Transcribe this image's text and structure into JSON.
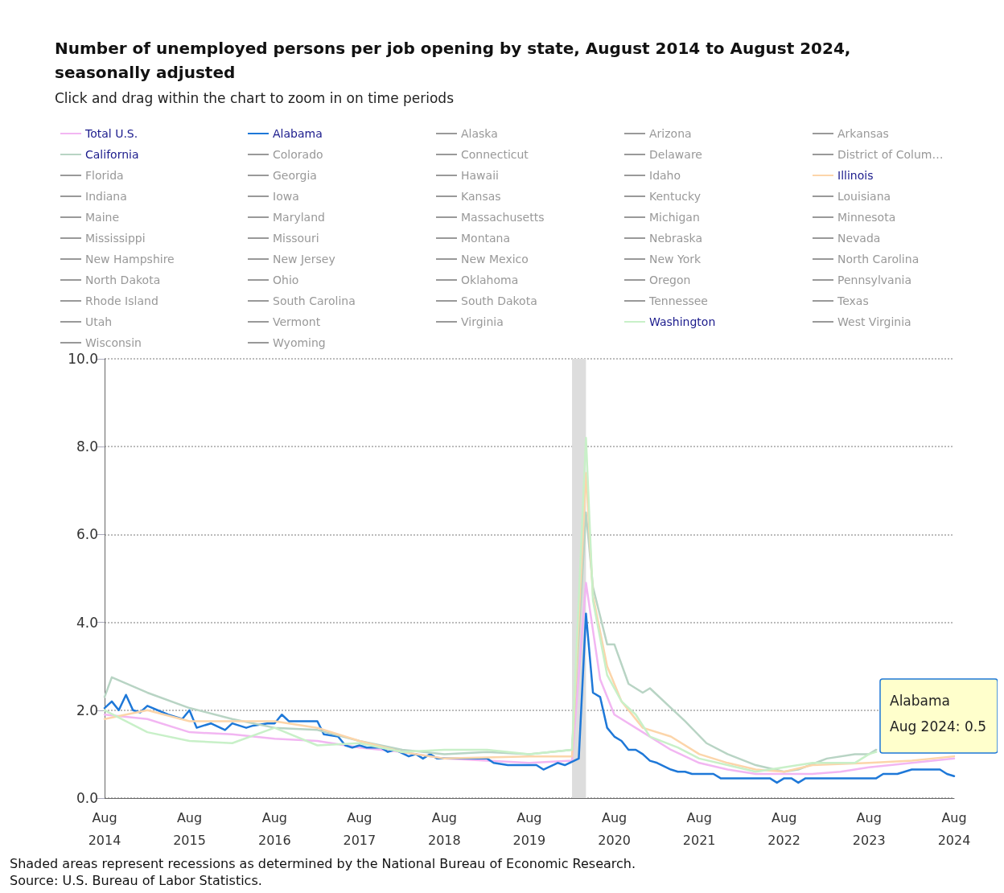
{
  "chart_data": {
    "type": "line",
    "title": "Number of unemployed persons per job opening by state, August 2014 to August 2024, seasonally adjusted",
    "subtitle": "Click and drag within the chart to zoom in on time periods",
    "legend": "top",
    "grid": "y",
    "marker": "none",
    "line_style": "solid",
    "xlim": [
      "2014-08",
      "2024-08"
    ],
    "xticks": [
      {
        "value": "2014-08",
        "label": "Aug\n2014"
      },
      {
        "value": "2015-08",
        "label": "Aug\n2015"
      },
      {
        "value": "2016-08",
        "label": "Aug\n2016"
      },
      {
        "value": "2017-08",
        "label": "Aug\n2017"
      },
      {
        "value": "2018-08",
        "label": "Aug\n2018"
      },
      {
        "value": "2019-08",
        "label": "Aug\n2019"
      },
      {
        "value": "2020-08",
        "label": "Aug\n2020"
      },
      {
        "value": "2021-08",
        "label": "Aug\n2021"
      },
      {
        "value": "2022-08",
        "label": "Aug\n2022"
      },
      {
        "value": "2023-08",
        "label": "Aug\n2023"
      },
      {
        "value": "2024-08",
        "label": "Aug\n2024"
      }
    ],
    "ylim": [
      0,
      10
    ],
    "yticks": [
      {
        "value": 0,
        "label": "0.0"
      },
      {
        "value": 2,
        "label": "2.0"
      },
      {
        "value": 4,
        "label": "4.0"
      },
      {
        "value": 6,
        "label": "6.0"
      },
      {
        "value": 8,
        "label": "8.0"
      },
      {
        "value": 10,
        "label": "10.0"
      }
    ],
    "bands": [
      {
        "axis": "x",
        "from": "2020-02",
        "to": "2020-04",
        "color": "#dddddd"
      }
    ],
    "annotations": [
      "Alabama\nAug 2024: 0.5",
      "Shaded areas represent recessions as determined by the National Bureau of Economic Research.",
      "Source: U.S. Bureau of Labor Statistics."
    ],
    "series": [
      {
        "name": "Total U.S.",
        "color": "#f2b6f2",
        "x": [
          "2014-08",
          "2015-02",
          "2015-08",
          "2016-02",
          "2016-08",
          "2017-02",
          "2017-08",
          "2018-02",
          "2018-08",
          "2019-02",
          "2019-08",
          "2020-02",
          "2020-04",
          "2020-06",
          "2020-08",
          "2020-12",
          "2021-04",
          "2021-08",
          "2021-12",
          "2022-04",
          "2022-08",
          "2022-12",
          "2023-04",
          "2023-08",
          "2024-02",
          "2024-08"
        ],
        "values": [
          1.9,
          1.8,
          1.5,
          1.45,
          1.35,
          1.3,
          1.15,
          1.05,
          0.9,
          0.85,
          0.8,
          0.85,
          4.9,
          2.7,
          1.9,
          1.5,
          1.1,
          0.8,
          0.65,
          0.55,
          0.55,
          0.55,
          0.6,
          0.7,
          0.8,
          0.9
        ]
      },
      {
        "name": "Alabama",
        "color": "#1e78d8",
        "x": [
          "2014-08",
          "2014-09",
          "2014-10",
          "2014-11",
          "2014-12",
          "2015-01",
          "2015-02",
          "2015-05",
          "2015-07",
          "2015-08",
          "2015-09",
          "2015-10",
          "2015-11",
          "2016-01",
          "2016-02",
          "2016-04",
          "2016-05",
          "2016-07",
          "2016-08",
          "2016-09",
          "2016-10",
          "2017-02",
          "2017-03",
          "2017-05",
          "2017-06",
          "2017-07",
          "2017-08",
          "2017-09",
          "2017-11",
          "2017-12",
          "2018-01",
          "2018-03",
          "2018-04",
          "2018-05",
          "2018-06",
          "2018-07",
          "2019-02",
          "2019-03",
          "2019-05",
          "2019-09",
          "2019-10",
          "2019-12",
          "2020-01",
          "2020-03",
          "2020-04",
          "2020-05",
          "2020-06",
          "2020-07",
          "2020-08",
          "2020-09",
          "2020-10",
          "2020-11",
          "2020-12",
          "2021-01",
          "2021-02",
          "2021-04",
          "2021-05",
          "2021-06",
          "2021-07",
          "2021-10",
          "2021-11",
          "2022-06",
          "2022-07",
          "2022-08",
          "2022-09",
          "2022-10",
          "2022-11",
          "2023-09",
          "2023-10",
          "2023-12",
          "2024-02",
          "2024-06",
          "2024-07",
          "2024-08"
        ],
        "values": [
          2.05,
          2.2,
          2.0,
          2.35,
          2.0,
          1.95,
          2.1,
          1.9,
          1.8,
          2.0,
          1.6,
          1.65,
          1.7,
          1.55,
          1.7,
          1.6,
          1.65,
          1.7,
          1.7,
          1.9,
          1.75,
          1.75,
          1.45,
          1.4,
          1.2,
          1.15,
          1.2,
          1.15,
          1.15,
          1.05,
          1.1,
          0.95,
          1.0,
          0.9,
          1.0,
          0.9,
          0.9,
          0.8,
          0.75,
          0.75,
          0.65,
          0.8,
          0.75,
          0.9,
          4.2,
          2.4,
          2.3,
          1.6,
          1.4,
          1.3,
          1.1,
          1.1,
          1.0,
          0.85,
          0.8,
          0.65,
          0.6,
          0.6,
          0.55,
          0.55,
          0.45,
          0.45,
          0.35,
          0.45,
          0.45,
          0.35,
          0.45,
          0.45,
          0.55,
          0.55,
          0.65,
          0.65,
          0.55,
          0.5
        ]
      },
      {
        "name": "Alaska",
        "color": "#999999"
      },
      {
        "name": "Arizona",
        "color": "#999999"
      },
      {
        "name": "Arkansas",
        "color": "#999999"
      },
      {
        "name": "California",
        "color": "#b8d4c4",
        "x": [
          "2014-08",
          "2014-09",
          "2015-02",
          "2015-08",
          "2016-02",
          "2016-08",
          "2017-02",
          "2017-08",
          "2018-02",
          "2018-08",
          "2019-02",
          "2019-08",
          "2020-02",
          "2020-04",
          "2020-05",
          "2020-07",
          "2020-08",
          "2020-10",
          "2020-12",
          "2021-01",
          "2021-06",
          "2021-09",
          "2021-12",
          "2022-04",
          "2022-08",
          "2022-10",
          "2023-02",
          "2023-06",
          "2023-08",
          "2023-09"
        ],
        "values": [
          2.3,
          2.75,
          2.4,
          2.05,
          1.8,
          1.6,
          1.55,
          1.3,
          1.1,
          1.0,
          1.05,
          1.0,
          1.1,
          6.5,
          4.8,
          3.5,
          3.5,
          2.6,
          2.4,
          2.5,
          1.75,
          1.25,
          1.0,
          0.75,
          0.6,
          0.65,
          0.9,
          1.0,
          1.0,
          1.1
        ]
      },
      {
        "name": "Colorado",
        "color": "#999999"
      },
      {
        "name": "Connecticut",
        "color": "#999999"
      },
      {
        "name": "Delaware",
        "color": "#999999"
      },
      {
        "name": "District of Colum…",
        "color": "#999999"
      },
      {
        "name": "Florida",
        "color": "#999999"
      },
      {
        "name": "Georgia",
        "color": "#999999"
      },
      {
        "name": "Hawaii",
        "color": "#999999"
      },
      {
        "name": "Idaho",
        "color": "#999999"
      },
      {
        "name": "Illinois",
        "color": "#fcd5aa",
        "x": [
          "2014-08",
          "2015-02",
          "2015-08",
          "2016-08",
          "2017-02",
          "2017-08",
          "2018-02",
          "2018-08",
          "2019-08",
          "2020-02",
          "2020-04",
          "2020-05",
          "2020-07",
          "2020-09",
          "2020-12",
          "2021-04",
          "2021-08",
          "2021-12",
          "2022-04",
          "2022-08",
          "2022-12",
          "2023-08",
          "2024-02",
          "2024-08"
        ],
        "values": [
          1.8,
          2.0,
          1.75,
          1.75,
          1.6,
          1.3,
          1.05,
          0.9,
          0.95,
          0.95,
          7.4,
          4.6,
          3.0,
          2.2,
          1.6,
          1.4,
          1.0,
          0.8,
          0.65,
          0.6,
          0.75,
          0.8,
          0.85,
          0.95
        ]
      },
      {
        "name": "Indiana",
        "color": "#999999"
      },
      {
        "name": "Iowa",
        "color": "#999999"
      },
      {
        "name": "Kansas",
        "color": "#999999"
      },
      {
        "name": "Kentucky",
        "color": "#999999"
      },
      {
        "name": "Louisiana",
        "color": "#999999"
      },
      {
        "name": "Maine",
        "color": "#999999"
      },
      {
        "name": "Maryland",
        "color": "#999999"
      },
      {
        "name": "Massachusetts",
        "color": "#999999"
      },
      {
        "name": "Michigan",
        "color": "#999999"
      },
      {
        "name": "Minnesota",
        "color": "#999999"
      },
      {
        "name": "Mississippi",
        "color": "#999999"
      },
      {
        "name": "Missouri",
        "color": "#999999"
      },
      {
        "name": "Montana",
        "color": "#999999"
      },
      {
        "name": "Nebraska",
        "color": "#999999"
      },
      {
        "name": "Nevada",
        "color": "#999999"
      },
      {
        "name": "New Hampshire",
        "color": "#999999"
      },
      {
        "name": "New Jersey",
        "color": "#999999"
      },
      {
        "name": "New Mexico",
        "color": "#999999"
      },
      {
        "name": "New York",
        "color": "#999999"
      },
      {
        "name": "North Carolina",
        "color": "#999999"
      },
      {
        "name": "North Dakota",
        "color": "#999999"
      },
      {
        "name": "Ohio",
        "color": "#999999"
      },
      {
        "name": "Oklahoma",
        "color": "#999999"
      },
      {
        "name": "Oregon",
        "color": "#999999"
      },
      {
        "name": "Pennsylvania",
        "color": "#999999"
      },
      {
        "name": "Rhode Island",
        "color": "#999999"
      },
      {
        "name": "South Carolina",
        "color": "#999999"
      },
      {
        "name": "South Dakota",
        "color": "#999999"
      },
      {
        "name": "Tennessee",
        "color": "#999999"
      },
      {
        "name": "Texas",
        "color": "#999999"
      },
      {
        "name": "Utah",
        "color": "#999999"
      },
      {
        "name": "Vermont",
        "color": "#999999"
      },
      {
        "name": "Virginia",
        "color": "#999999"
      },
      {
        "name": "Washington",
        "color": "#c8f0c8",
        "x": [
          "2014-08",
          "2015-02",
          "2015-08",
          "2016-02",
          "2016-08",
          "2017-02",
          "2017-08",
          "2018-02",
          "2018-08",
          "2019-02",
          "2019-08",
          "2020-02",
          "2020-04",
          "2020-05",
          "2020-07",
          "2020-09",
          "2020-11",
          "2021-01",
          "2021-05",
          "2021-08",
          "2021-12",
          "2022-04",
          "2022-08",
          "2022-12",
          "2023-06",
          "2023-08",
          "2023-09"
        ],
        "values": [
          2.0,
          1.5,
          1.3,
          1.25,
          1.6,
          1.2,
          1.25,
          1.05,
          1.1,
          1.1,
          1.0,
          1.1,
          8.2,
          4.5,
          2.8,
          2.2,
          1.9,
          1.4,
          1.15,
          0.9,
          0.75,
          0.6,
          0.7,
          0.8,
          0.8,
          1.0,
          1.05
        ]
      },
      {
        "name": "West Virginia",
        "color": "#999999"
      },
      {
        "name": "Wisconsin",
        "color": "#999999"
      },
      {
        "name": "Wyoming",
        "color": "#999999"
      }
    ]
  }
}
